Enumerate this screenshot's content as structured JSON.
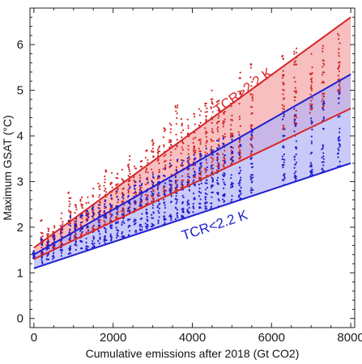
{
  "chart_data": {
    "type": "scatter",
    "title": "",
    "xlabel": "Cumulative emissions after 2018 (Gt CO2)",
    "ylabel": "Maximum GSAT (°C)",
    "xlim": [
      -100,
      8100
    ],
    "ylim": [
      -0.2,
      6.8
    ],
    "xticks": [
      0,
      2000,
      4000,
      6000,
      8000
    ],
    "yticks": [
      0,
      1,
      2,
      3,
      4,
      5,
      6
    ],
    "xtick_labels": [
      "0",
      "2000",
      "4000",
      "6000",
      "8000"
    ],
    "ytick_labels": [
      "0",
      "1",
      "2",
      "3",
      "4",
      "5",
      "6"
    ],
    "grid": false,
    "series": [
      {
        "name": "TCR>2.2 K",
        "color": "#d62728",
        "band_fill": "#f4aaaa",
        "upper_line": {
          "x": [
            0,
            8000
          ],
          "y": [
            1.55,
            6.6
          ]
        },
        "lower_line": {
          "x": [
            0,
            8000
          ],
          "y": [
            1.3,
            4.6
          ]
        },
        "points_summary": {
          "x_columns": [
            200,
            350,
            500,
            700,
            900,
            1050,
            1200,
            1350,
            1500,
            1650,
            1800,
            1950,
            2100,
            2250,
            2400,
            2550,
            2700,
            2850,
            3000,
            3150,
            3300,
            3450,
            3600,
            3750,
            3900,
            4050,
            4200,
            4350,
            4500,
            4650,
            4800,
            5000,
            5200,
            5500,
            6300,
            6600,
            7000,
            7300,
            7700
          ],
          "y_low": [
            1.4,
            1.5,
            1.55,
            1.6,
            1.7,
            1.75,
            1.8,
            1.85,
            1.9,
            2.0,
            2.05,
            2.1,
            2.15,
            2.2,
            2.3,
            2.35,
            2.4,
            2.5,
            2.55,
            2.6,
            2.7,
            2.75,
            2.8,
            2.85,
            2.9,
            3.0,
            3.05,
            3.1,
            3.2,
            3.25,
            3.3,
            3.4,
            3.5,
            3.6,
            4.1,
            4.25,
            4.5,
            4.6,
            4.9
          ],
          "y_high": [
            2.2,
            2.0,
            2.1,
            2.4,
            2.8,
            2.6,
            2.7,
            2.7,
            3.0,
            3.0,
            3.3,
            3.2,
            3.2,
            3.3,
            3.6,
            3.4,
            3.5,
            3.7,
            4.0,
            3.8,
            4.2,
            4.3,
            4.7,
            4.4,
            4.4,
            4.5,
            4.6,
            4.8,
            5.0,
            4.9,
            4.6,
            5.0,
            5.4,
            5.6,
            5.8,
            6.0,
            5.8,
            6.0,
            6.3
          ]
        }
      },
      {
        "name": "TCR<2.2 K",
        "color": "#1f1fd1",
        "band_fill": "#b3b3f6",
        "upper_line": {
          "x": [
            0,
            8000
          ],
          "y": [
            1.4,
            5.35
          ]
        },
        "lower_line": {
          "x": [
            0,
            8000
          ],
          "y": [
            1.1,
            3.4
          ]
        },
        "points_summary": {
          "x_columns": [
            0,
            200,
            350,
            500,
            700,
            900,
            1050,
            1200,
            1350,
            1500,
            1650,
            1800,
            1950,
            2100,
            2250,
            2400,
            2550,
            2700,
            2850,
            3000,
            3150,
            3300,
            3450,
            3600,
            3750,
            3900,
            4050,
            4200,
            4350,
            4500,
            4650,
            4800,
            5000,
            5200,
            5500,
            6300,
            6600,
            7000,
            7300,
            7700
          ],
          "y_low": [
            1.3,
            1.2,
            1.25,
            1.3,
            1.35,
            1.4,
            1.45,
            1.5,
            1.5,
            1.55,
            1.6,
            1.65,
            1.7,
            1.75,
            1.75,
            1.8,
            1.85,
            1.9,
            1.95,
            2.0,
            2.0,
            2.05,
            2.1,
            2.15,
            2.2,
            2.25,
            2.25,
            2.3,
            2.35,
            2.4,
            2.45,
            2.5,
            2.55,
            2.6,
            2.7,
            2.9,
            3.0,
            3.1,
            3.2,
            3.3
          ],
          "y_high": [
            1.5,
            1.8,
            1.7,
            1.9,
            2.1,
            2.3,
            2.2,
            2.3,
            2.4,
            2.5,
            2.5,
            2.6,
            2.7,
            2.8,
            2.8,
            2.9,
            3.0,
            3.0,
            3.1,
            3.2,
            3.2,
            3.3,
            3.4,
            3.5,
            3.5,
            3.6,
            3.6,
            3.7,
            3.8,
            3.8,
            3.9,
            4.0,
            4.0,
            4.1,
            4.2,
            4.5,
            4.6,
            4.7,
            4.8,
            5.0
          ]
        }
      }
    ],
    "annotations": [
      {
        "text": "TCR>2.2 K",
        "color": "#d62728",
        "x": 5350,
        "y": 4.9,
        "angle_follows_line": true
      },
      {
        "text": "TCR<2.2 K",
        "color": "#1f1fd1",
        "x": 4600,
        "y": 1.95,
        "angle_follows_line": true
      }
    ]
  }
}
